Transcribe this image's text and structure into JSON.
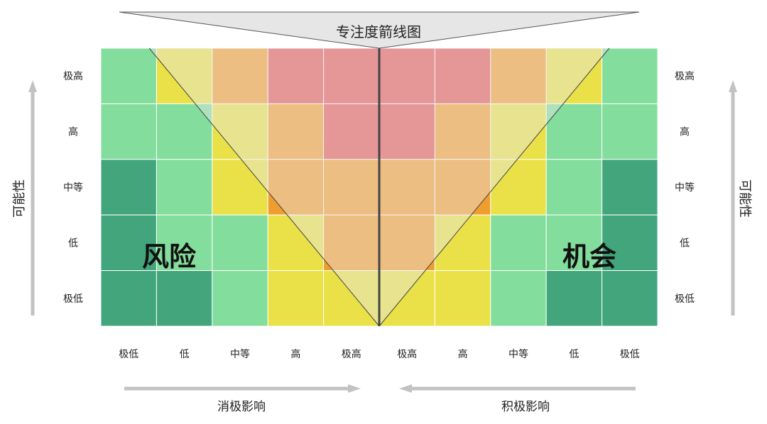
{
  "title": "专注度箭线图",
  "y_axis_label": "可能性",
  "x_axis_left_label": "消极影响",
  "x_axis_right_label": "积极影响",
  "risk_label": "风险",
  "opportunity_label": "机会",
  "row_labels": [
    "极高",
    "高",
    "中等",
    "低",
    "极低"
  ],
  "col_labels": [
    "极低",
    "低",
    "中等",
    "高",
    "极高",
    "极高",
    "高",
    "中等",
    "低",
    "极低"
  ],
  "colors": {
    "dg": "#42a57c",
    "lg": "#83dd9c",
    "y": "#eae148",
    "o": "#f09d2f",
    "r": "#e45456",
    "triangle": "#e6e6e6",
    "arrow": "#c2c2c2",
    "divider": "#444444"
  },
  "grid": [
    [
      "lg",
      "y",
      "o",
      "r",
      "r",
      "r",
      "r",
      "o",
      "y",
      "lg"
    ],
    [
      "lg",
      "lg",
      "y",
      "o",
      "r",
      "r",
      "o",
      "y",
      "lg",
      "lg"
    ],
    [
      "dg",
      "lg",
      "y",
      "o",
      "o",
      "o",
      "o",
      "y",
      "lg",
      "dg"
    ],
    [
      "dg",
      "lg",
      "lg",
      "y",
      "o",
      "o",
      "y",
      "lg",
      "lg",
      "dg"
    ],
    [
      "dg",
      "dg",
      "lg",
      "y",
      "y",
      "y",
      "y",
      "lg",
      "dg",
      "dg"
    ]
  ]
}
